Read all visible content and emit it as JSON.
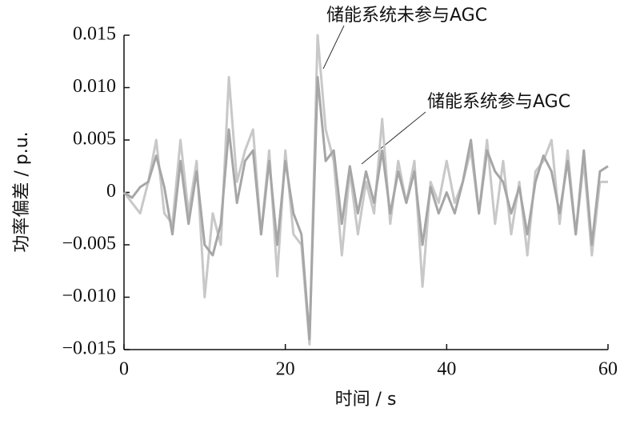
{
  "chart_data": {
    "type": "line",
    "x_label": "时间 / s",
    "y_label": "功率偏差 / p.u.",
    "annotations": [
      "储能系统未参与AGC",
      "储能系统参与AGC"
    ],
    "x": [
      0,
      1,
      2,
      3,
      4,
      5,
      6,
      7,
      8,
      9,
      10,
      11,
      12,
      13,
      14,
      15,
      16,
      17,
      18,
      19,
      20,
      21,
      22,
      23,
      24,
      25,
      26,
      27,
      28,
      29,
      30,
      31,
      32,
      33,
      34,
      35,
      36,
      37,
      38,
      39,
      40,
      41,
      42,
      43,
      44,
      45,
      46,
      47,
      48,
      49,
      50,
      51,
      52,
      53,
      54,
      55,
      56,
      57,
      58,
      59,
      60
    ],
    "series": [
      {
        "color": "#c8c8c8",
        "values": [
          0,
          -0.001,
          -0.002,
          0.001,
          0.005,
          -0.002,
          -0.003,
          0.005,
          -0.002,
          0.003,
          -0.01,
          -0.002,
          -0.005,
          0.011,
          0.001,
          0.004,
          0.006,
          -0.004,
          0.004,
          -0.008,
          0.004,
          -0.004,
          -0.005,
          -0.0145,
          0.015,
          0.006,
          0.003,
          -0.006,
          0.002,
          -0.004,
          0.001,
          -0.002,
          0.007,
          -0.003,
          0.003,
          -0.001,
          0.003,
          -0.009,
          0.001,
          -0.001,
          0.003,
          -0.001,
          0.001,
          0.004,
          -0.002,
          0.005,
          -0.003,
          0.003,
          -0.004,
          0.001,
          -0.006,
          0.002,
          0.003,
          0.005,
          -0.003,
          0.004,
          -0.004,
          0.003,
          -0.006,
          0.001,
          0.001
        ]
      },
      {
        "color": "#a6a6a6",
        "values": [
          0,
          -0.0005,
          0.0005,
          0.001,
          0.0035,
          0.0005,
          -0.004,
          0.003,
          -0.003,
          0.002,
          -0.005,
          -0.006,
          -0.003,
          0.006,
          -0.001,
          0.003,
          0.004,
          -0.004,
          0.003,
          -0.005,
          0.003,
          -0.002,
          -0.004,
          -0.014,
          0.011,
          0.003,
          0.004,
          -0.003,
          0.0025,
          -0.002,
          0.002,
          -0.001,
          0.004,
          -0.002,
          0.002,
          -0.001,
          0.002,
          -0.005,
          0.0005,
          -0.002,
          0,
          -0.002,
          0.001,
          0.005,
          -0.002,
          0.004,
          0.002,
          0.001,
          -0.002,
          0.0005,
          -0.004,
          0.001,
          0.0035,
          0.002,
          -0.002,
          0.003,
          -0.004,
          0.004,
          -0.005,
          0.002,
          0.0025
        ]
      }
    ],
    "xlim": [
      0,
      60
    ],
    "xticks": [
      0,
      20,
      40,
      60
    ],
    "ylim": [
      -0.015,
      0.015
    ],
    "yticks": [
      {
        "value": 0.015,
        "label": "0.015"
      },
      {
        "value": 0.01,
        "label": "0.010"
      },
      {
        "value": 0.005,
        "label": "0.005"
      },
      0,
      {
        "value": -0.005,
        "label": "−0.005"
      },
      {
        "value": -0.01,
        "label": "−0.010"
      },
      {
        "value": -0.015,
        "label": "−0.015"
      }
    ]
  }
}
